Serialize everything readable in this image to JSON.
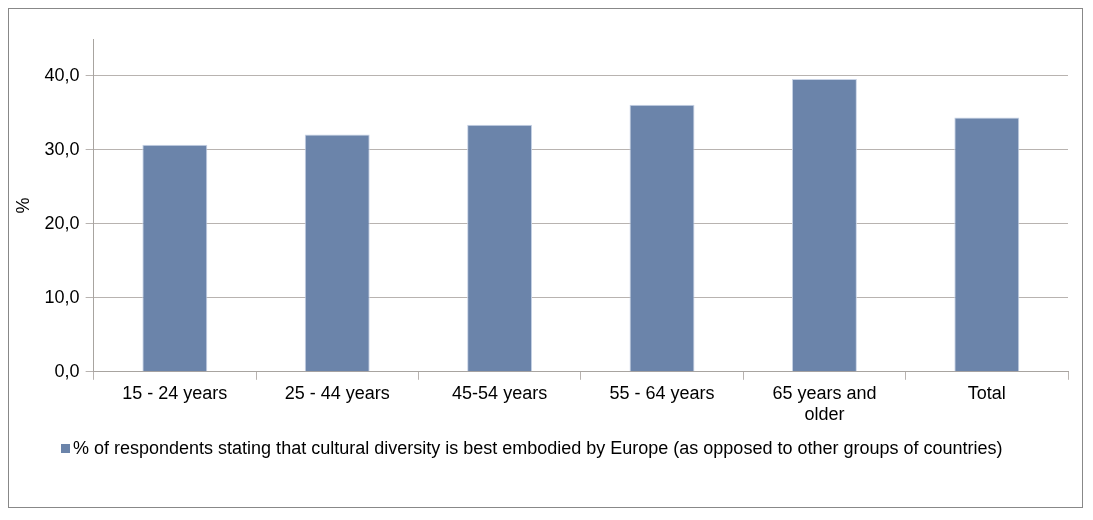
{
  "chart_data": {
    "type": "bar",
    "ylabel": "%",
    "categories": [
      "15 - 24 years",
      "25 - 44 years",
      "45-54 years",
      "55 - 64 years",
      "65 years and older",
      "Total"
    ],
    "series": [
      {
        "name": "% of respondents stating that cultural diversity is best embodied by Europe (as opposed to other groups of countries)",
        "color": "#6b84aa",
        "values": [
          30.7,
          32.1,
          33.4,
          36.1,
          39.6,
          34.4
        ]
      }
    ],
    "ylim": [
      0,
      45
    ],
    "yticks": [
      {
        "value": 0,
        "label": "0,0"
      },
      {
        "value": 10,
        "label": "10,0"
      },
      {
        "value": 20,
        "label": "20,0"
      },
      {
        "value": 30,
        "label": "30,0"
      },
      {
        "value": 40,
        "label": "40,0"
      }
    ],
    "grid": "y",
    "legend": "bottom"
  }
}
